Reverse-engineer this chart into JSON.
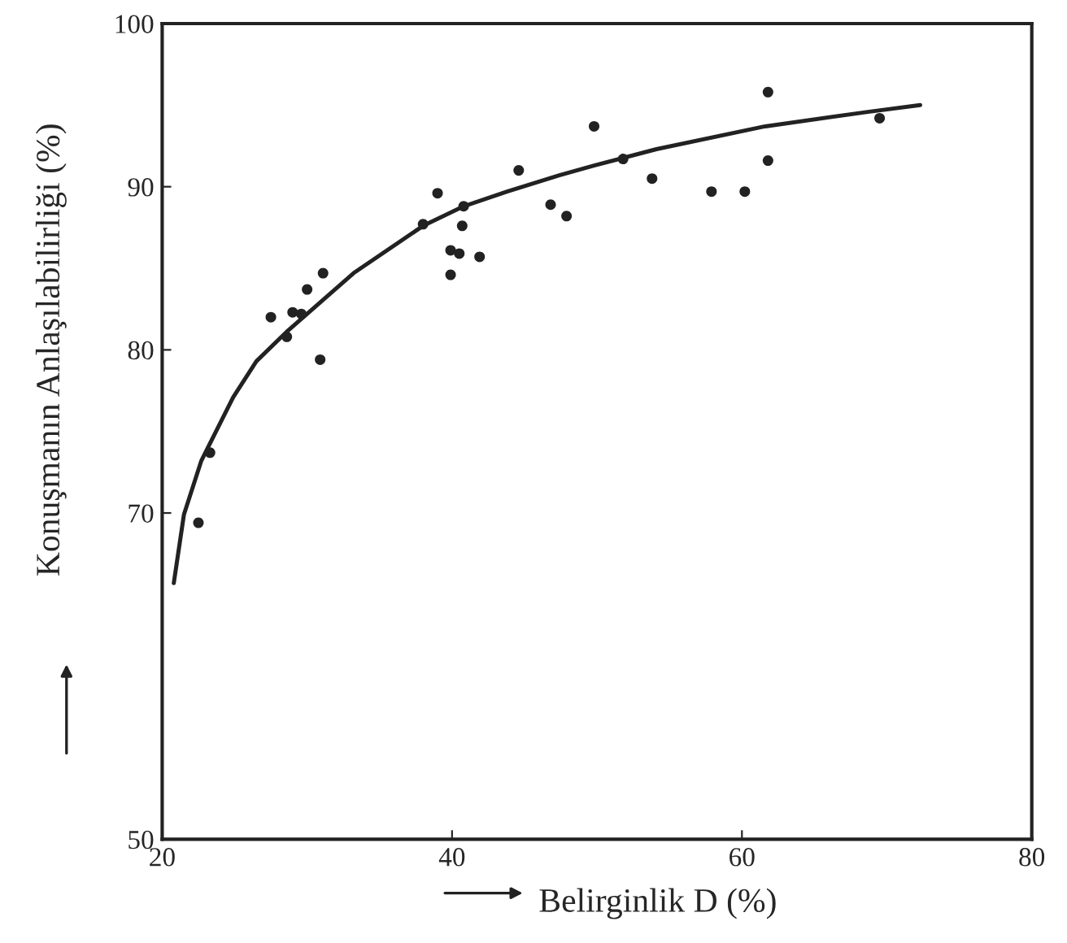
{
  "chart_data": {
    "type": "scatter",
    "xlabel": "Belirginlik D (%)",
    "ylabel": "Konuşmanın Anlaşılabilirliği (%)",
    "xlim": [
      20,
      80
    ],
    "ylim": [
      50,
      100
    ],
    "xticks": [
      20,
      40,
      60,
      80
    ],
    "yticks": [
      50,
      70,
      80,
      90,
      100
    ],
    "grid": false,
    "legend": false,
    "marker": "circle",
    "series": [
      {
        "color": "#222222",
        "x": [
          22.5,
          23.3,
          27.5,
          28.6,
          29.0,
          29.6,
          30.0,
          30.9,
          31.1,
          38.0,
          39.0,
          40.8,
          40.7,
          39.9,
          40.5,
          41.9,
          39.9,
          44.6,
          46.8,
          47.9,
          49.8,
          51.8,
          53.8,
          57.9,
          60.2,
          61.8,
          61.8,
          69.5
        ],
        "values": [
          69.4,
          73.7,
          82.0,
          80.8,
          82.3,
          82.2,
          83.7,
          79.4,
          84.7,
          87.7,
          89.6,
          88.8,
          87.6,
          86.1,
          85.9,
          85.7,
          84.6,
          91.0,
          88.9,
          88.2,
          93.7,
          91.7,
          90.5,
          89.7,
          89.7,
          95.8,
          91.6,
          94.2
        ]
      },
      {
        "type": "line",
        "color": "#222222",
        "marker": "none",
        "x": [
          20.8,
          21.5,
          22.7,
          24.9,
          26.5,
          28.7,
          33.2,
          38.0,
          40.8,
          43.8,
          47.4,
          49.8,
          54.1,
          61.6,
          68.8,
          72.3
        ],
        "values": [
          65.7,
          69.9,
          73.2,
          77.1,
          79.3,
          81.2,
          84.7,
          87.6,
          88.8,
          89.7,
          90.7,
          91.3,
          92.3,
          93.7,
          94.6,
          95.0
        ]
      }
    ]
  }
}
